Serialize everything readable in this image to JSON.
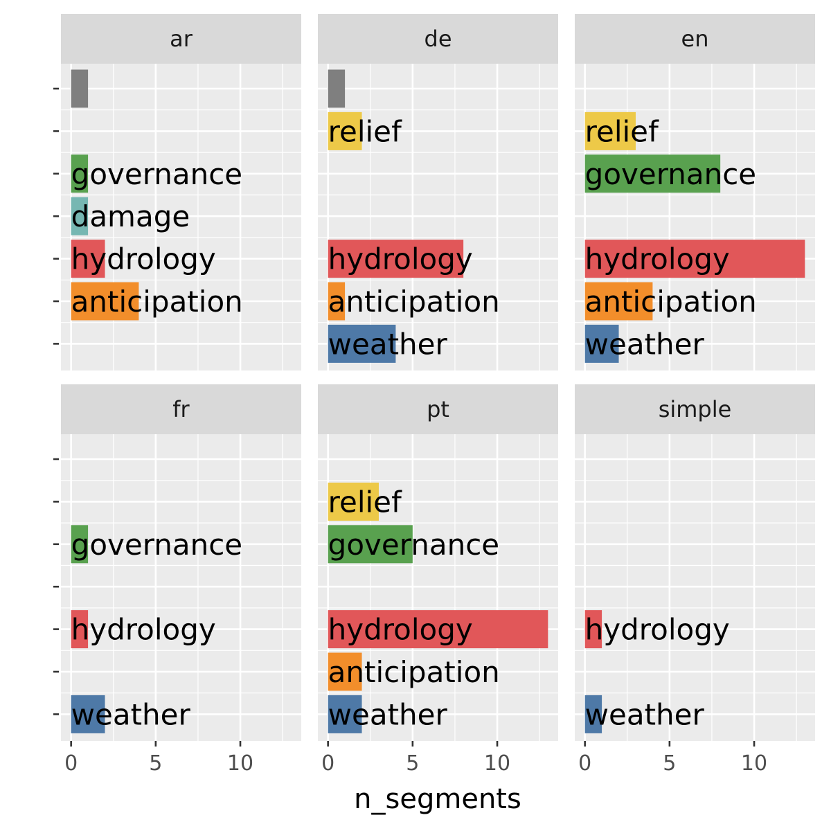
{
  "chart_data": {
    "type": "bar",
    "orientation": "horizontal",
    "xlabel": "n_segments",
    "ylabel": "",
    "xlim": [
      -0.6,
      13.6
    ],
    "x_ticks": [
      0,
      5,
      10
    ],
    "x_minor_ticks": [
      2.5,
      7.5,
      12.5
    ],
    "grid": true,
    "legend": "none",
    "y_slots": 7,
    "colors": {
      "weather": "#4e79a7",
      "anticipation": "#f28e2b",
      "hydrology": "#e15759",
      "damage": "#76b7b2",
      "governance": "#59a14f",
      "relief": "#edc948",
      "unlabeled": "#7f7f7f"
    },
    "panels": [
      {
        "name": "ar",
        "bars": [
          {
            "slot": 7,
            "label": "",
            "category": "unlabeled",
            "value": 1
          },
          {
            "slot": 5,
            "label": "governance",
            "category": "governance",
            "value": 1
          },
          {
            "slot": 4,
            "label": "damage",
            "category": "damage",
            "value": 1
          },
          {
            "slot": 3,
            "label": "hydrology",
            "category": "hydrology",
            "value": 2
          },
          {
            "slot": 2,
            "label": "anticipation",
            "category": "anticipation",
            "value": 4
          }
        ]
      },
      {
        "name": "de",
        "bars": [
          {
            "slot": 7,
            "label": "",
            "category": "unlabeled",
            "value": 1
          },
          {
            "slot": 6,
            "label": "relief",
            "category": "relief",
            "value": 2
          },
          {
            "slot": 3,
            "label": "hydrology",
            "category": "hydrology",
            "value": 8
          },
          {
            "slot": 2,
            "label": "anticipation",
            "category": "anticipation",
            "value": 1
          },
          {
            "slot": 1,
            "label": "weather",
            "category": "weather",
            "value": 4
          }
        ]
      },
      {
        "name": "en",
        "bars": [
          {
            "slot": 6,
            "label": "relief",
            "category": "relief",
            "value": 3
          },
          {
            "slot": 5,
            "label": "governance",
            "category": "governance",
            "value": 8
          },
          {
            "slot": 3,
            "label": "hydrology",
            "category": "hydrology",
            "value": 13
          },
          {
            "slot": 2,
            "label": "anticipation",
            "category": "anticipation",
            "value": 4
          },
          {
            "slot": 1,
            "label": "weather",
            "category": "weather",
            "value": 2
          }
        ]
      },
      {
        "name": "fr",
        "bars": [
          {
            "slot": 5,
            "label": "governance",
            "category": "governance",
            "value": 1
          },
          {
            "slot": 3,
            "label": "hydrology",
            "category": "hydrology",
            "value": 1
          },
          {
            "slot": 1,
            "label": "weather",
            "category": "weather",
            "value": 2
          }
        ]
      },
      {
        "name": "pt",
        "bars": [
          {
            "slot": 6,
            "label": "relief",
            "category": "relief",
            "value": 3
          },
          {
            "slot": 5,
            "label": "governance",
            "category": "governance",
            "value": 5
          },
          {
            "slot": 3,
            "label": "hydrology",
            "category": "hydrology",
            "value": 13
          },
          {
            "slot": 2,
            "label": "anticipation",
            "category": "anticipation",
            "value": 2
          },
          {
            "slot": 1,
            "label": "weather",
            "category": "weather",
            "value": 2
          }
        ]
      },
      {
        "name": "simple",
        "bars": [
          {
            "slot": 3,
            "label": "hydrology",
            "category": "hydrology",
            "value": 1
          },
          {
            "slot": 1,
            "label": "weather",
            "category": "weather",
            "value": 1
          }
        ]
      }
    ]
  }
}
